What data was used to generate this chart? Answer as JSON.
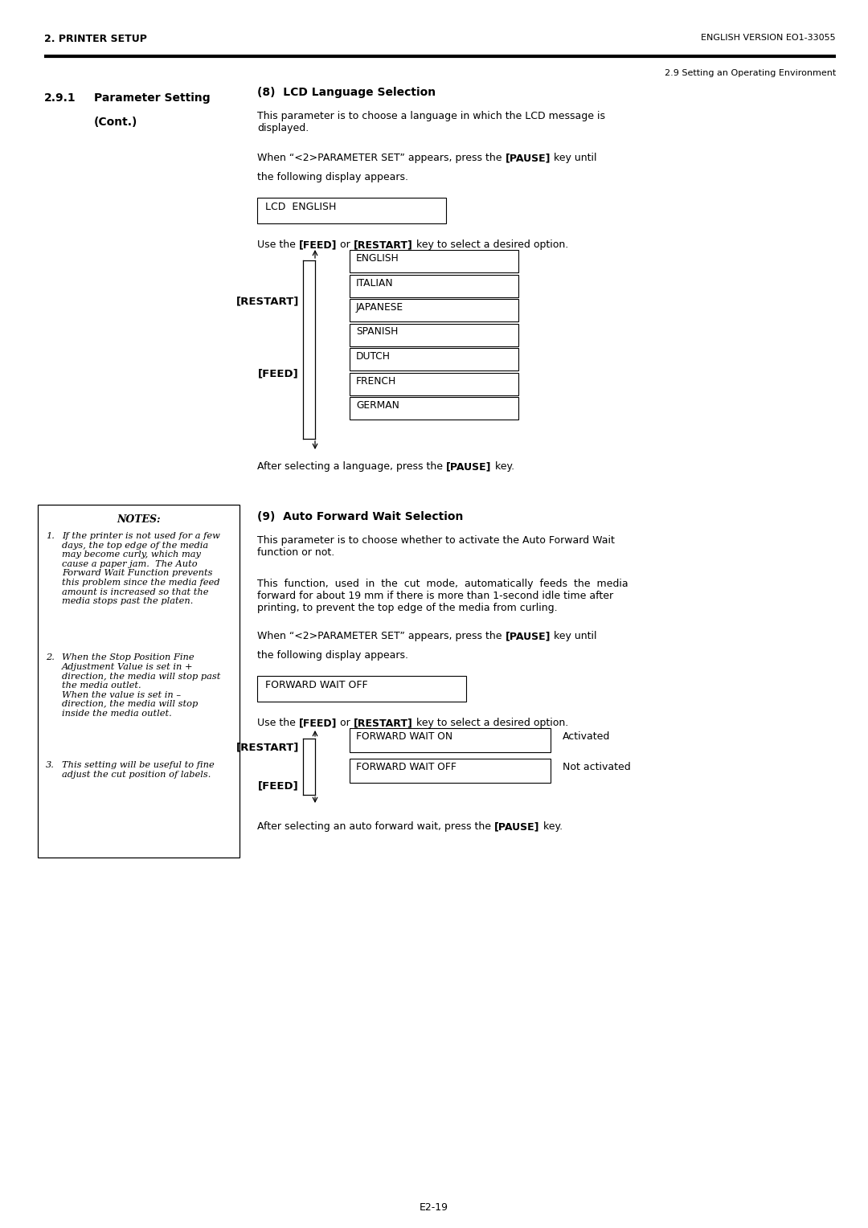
{
  "page_width": 10.8,
  "page_height": 15.28,
  "bg_color": "#ffffff",
  "header_left": "2. PRINTER SETUP",
  "header_right": "ENGLISH VERSION EO1-33055",
  "subheader_right": "2.9 Setting an Operating Environment",
  "section8_title": "(8)  LCD Language Selection",
  "section9_title": "(9)  Auto Forward Wait Selection",
  "lcd_display": "LCD  ENGLISH",
  "forward_wait_display": "FORWARD WAIT OFF",
  "languages": [
    "ENGLISH",
    "ITALIAN",
    "JAPANESE",
    "SPANISH",
    "DUTCH",
    "FRENCH",
    "GERMAN"
  ],
  "fw_options": [
    "FORWARD WAIT ON",
    "FORWARD WAIT OFF"
  ],
  "fw_labels": [
    "Activated",
    "Not activated"
  ],
  "restart_label": "[RESTART]",
  "feed_label": "[FEED]",
  "notes_title": "NOTES:",
  "notes": [
    [
      "1.",
      "If the printer is not used for a few\ndays, the top edge of the media\nmay become curly, which may\ncause a paper jam.  The Auto\nForward Wait Function prevents\nthis problem since the media feed\namount is increased so that the\nmedia stops past the platen."
    ],
    [
      "2.",
      "When the Stop Position Fine\nAdjustment Value is set in +\ndirection, the media will stop past\nthe media outlet.\nWhen the value is set in –\ndirection, the media will stop\ninside the media outlet."
    ],
    [
      "3.",
      "This setting will be useful to fine\nadjust the cut position of labels."
    ]
  ],
  "footer": "E2-19",
  "lm": 0.55,
  "rcx": 3.2,
  "dpi": 100
}
